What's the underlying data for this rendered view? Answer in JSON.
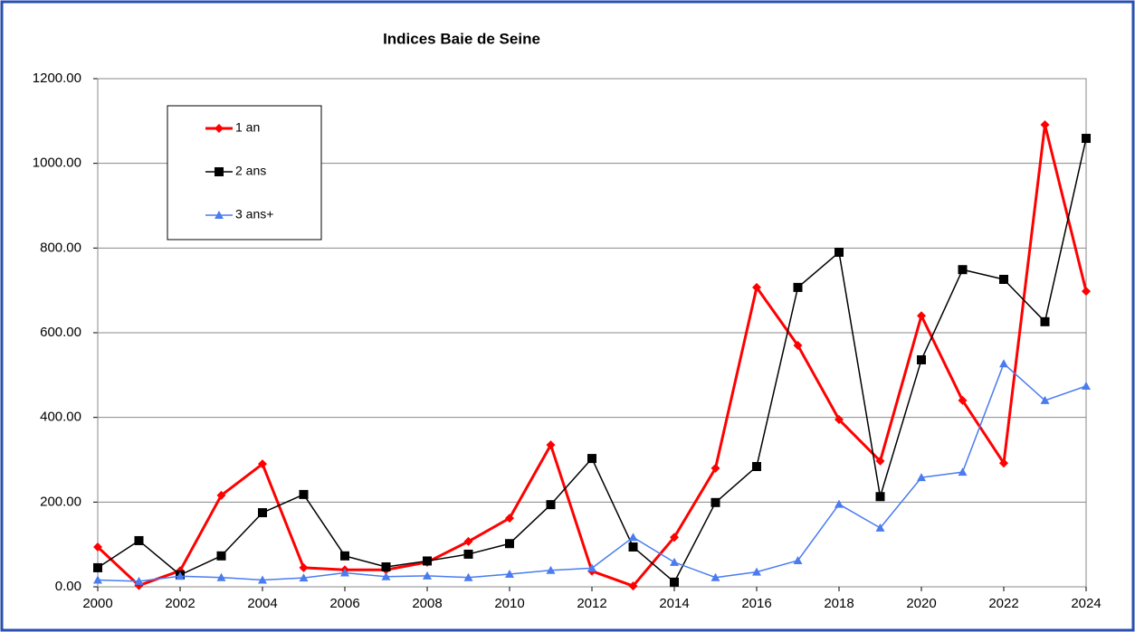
{
  "chart_data": {
    "type": "line",
    "title": "Indices Baie de Seine",
    "x": [
      2000,
      2001,
      2002,
      2003,
      2004,
      2005,
      2006,
      2007,
      2008,
      2009,
      2010,
      2011,
      2012,
      2013,
      2014,
      2015,
      2016,
      2017,
      2018,
      2019,
      2020,
      2021,
      2022,
      2023,
      2024
    ],
    "series": [
      {
        "name": "1 an",
        "color": "#ff0000",
        "marker": "diamond",
        "width": 3,
        "values": [
          94,
          3,
          38,
          216,
          290,
          45,
          40,
          40,
          58,
          107,
          162,
          335,
          37,
          2,
          117,
          280,
          707,
          570,
          395,
          297,
          640,
          440,
          292,
          1091,
          698
        ]
      },
      {
        "name": "2 ans",
        "color": "#000000",
        "marker": "square",
        "width": 1.5,
        "values": [
          45,
          109,
          28,
          73,
          175,
          218,
          73,
          47,
          61,
          77,
          102,
          194,
          303,
          94,
          11,
          199,
          284,
          707,
          790,
          213,
          536,
          749,
          726,
          626,
          1059
        ]
      },
      {
        "name": "3 ans+",
        "color": "#4a7cf0",
        "marker": "triangle",
        "width": 1.5,
        "values": [
          16,
          13,
          25,
          22,
          16,
          21,
          33,
          24,
          26,
          22,
          30,
          39,
          44,
          117,
          58,
          22,
          35,
          62,
          195,
          139,
          258,
          271,
          527,
          440,
          474
        ]
      }
    ],
    "xlim": [
      2000,
      2024
    ],
    "xticks": [
      2000,
      2002,
      2004,
      2006,
      2008,
      2010,
      2012,
      2014,
      2016,
      2018,
      2020,
      2022,
      2024
    ],
    "ylim": [
      0,
      1200
    ],
    "yticks": [
      {
        "value": 0,
        "label": "0.00"
      },
      {
        "value": 200,
        "label": "200.00"
      },
      {
        "value": 400,
        "label": "400.00"
      },
      {
        "value": 600,
        "label": "600.00"
      },
      {
        "value": 800,
        "label": "800.00"
      },
      {
        "value": 1000,
        "label": "1000.00"
      },
      {
        "value": 1200,
        "label": "1200.00"
      }
    ],
    "grid": true,
    "legend": "upper left"
  }
}
